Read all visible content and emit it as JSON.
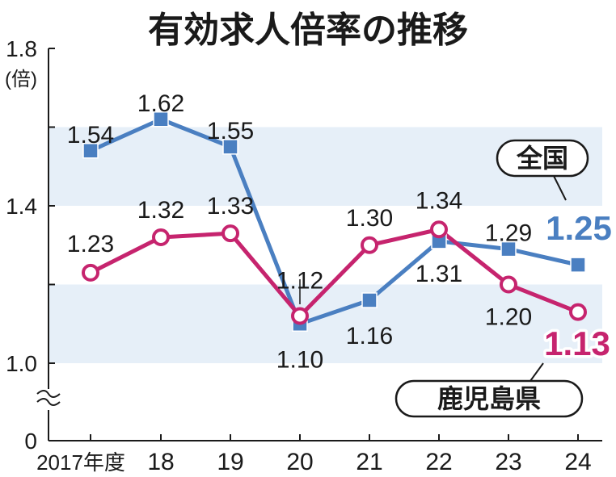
{
  "chart_data": {
    "type": "line",
    "title": "有効求人倍率の推移",
    "ylabel": "(倍)",
    "categories": [
      "2017年度",
      "18",
      "19",
      "20",
      "21",
      "22",
      "23",
      "24"
    ],
    "y_ticks": [
      "1.8",
      "1.4",
      "1.0",
      "0"
    ],
    "ylim": [
      1.0,
      1.8
    ],
    "axis_break": true,
    "legend": "inline labels on the right",
    "series": [
      {
        "name": "全国",
        "color": "#4a7fc1",
        "marker": "filled-square",
        "values": [
          1.54,
          1.62,
          1.55,
          1.1,
          1.16,
          1.31,
          1.29,
          1.25
        ],
        "labels": [
          "1.54",
          "1.62",
          "1.55",
          "1.10",
          "1.16",
          "1.31",
          "1.29",
          "1.25"
        ]
      },
      {
        "name": "鹿児島県",
        "color": "#c6246e",
        "marker": "open-circle",
        "values": [
          1.23,
          1.32,
          1.33,
          1.12,
          1.3,
          1.34,
          1.2,
          1.13
        ],
        "labels": [
          "1.23",
          "1.32",
          "1.33",
          "1.12",
          "1.30",
          "1.34",
          "1.20",
          "1.13"
        ]
      }
    ]
  }
}
